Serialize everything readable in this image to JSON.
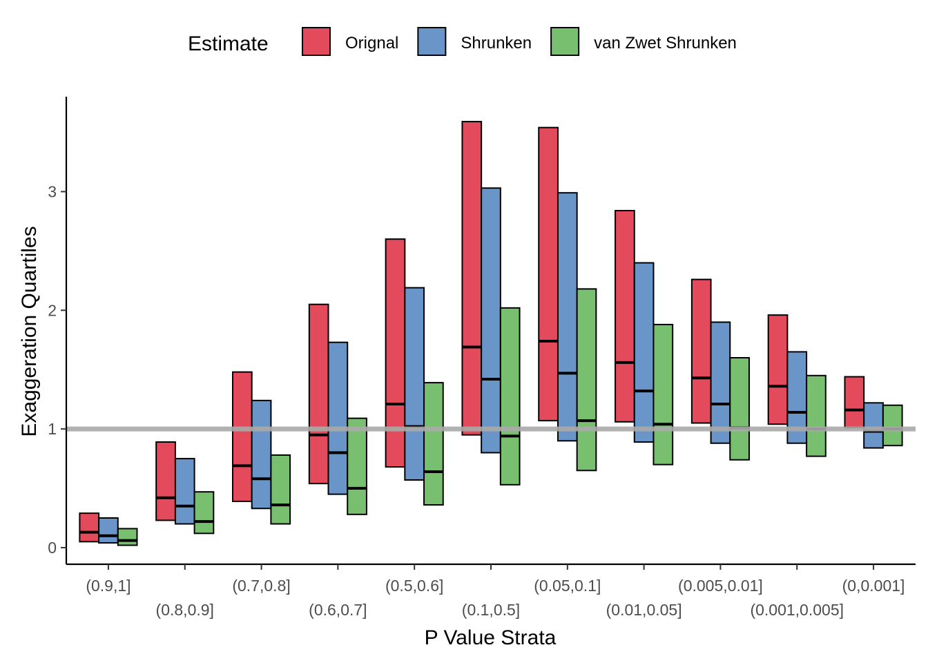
{
  "chart_data": {
    "type": "bar",
    "xlabel": "P Value Strata",
    "ylabel": "Exaggeration Quartiles",
    "ylim": [
      -0.14,
      3.8
    ],
    "yticks": [
      0,
      1,
      2,
      3
    ],
    "reference_line": 1,
    "grid": false,
    "legend": {
      "title": "Estimate",
      "position": "top"
    },
    "categories": [
      "(0.9,1]",
      "(0.8,0.9]",
      "(0.7,0.8]",
      "(0.6,0.7]",
      "(0.5,0.6]",
      "(0.1,0.5]",
      "(0.05,0.1]",
      "(0.01,0.05]",
      "(0.005,0.01]",
      "(0.001,0.005]",
      "(0,0.001]"
    ],
    "series": [
      {
        "name": "Orignal",
        "color": "#e34a5b",
        "q1": [
          0.05,
          0.23,
          0.39,
          0.54,
          0.68,
          0.95,
          1.07,
          1.06,
          1.05,
          1.04,
          1.01
        ],
        "median": [
          0.13,
          0.42,
          0.69,
          0.95,
          1.21,
          1.69,
          1.74,
          1.56,
          1.43,
          1.36,
          1.16
        ],
        "q3": [
          0.29,
          0.89,
          1.48,
          2.05,
          2.6,
          3.59,
          3.54,
          2.84,
          2.26,
          1.96,
          1.44
        ]
      },
      {
        "name": "Shrunken",
        "color": "#6995c8",
        "q1": [
          0.04,
          0.2,
          0.33,
          0.45,
          0.57,
          0.8,
          0.9,
          0.89,
          0.88,
          0.88,
          0.84
        ],
        "median": [
          0.1,
          0.35,
          0.58,
          0.8,
          1.02,
          1.42,
          1.47,
          1.32,
          1.21,
          1.14,
          0.98
        ],
        "q3": [
          0.25,
          0.75,
          1.24,
          1.73,
          2.19,
          3.03,
          2.99,
          2.4,
          1.9,
          1.65,
          1.22
        ]
      },
      {
        "name": "van Zwet Shrunken",
        "color": "#78c06f",
        "q1": [
          0.02,
          0.12,
          0.2,
          0.28,
          0.36,
          0.53,
          0.65,
          0.7,
          0.74,
          0.77,
          0.86
        ],
        "median": [
          0.06,
          0.22,
          0.36,
          0.5,
          0.64,
          0.94,
          1.07,
          1.04,
          1.01,
          1.0,
          1.0
        ],
        "q3": [
          0.16,
          0.47,
          0.78,
          1.09,
          1.39,
          2.02,
          2.18,
          1.88,
          1.6,
          1.45,
          1.2
        ]
      }
    ]
  }
}
